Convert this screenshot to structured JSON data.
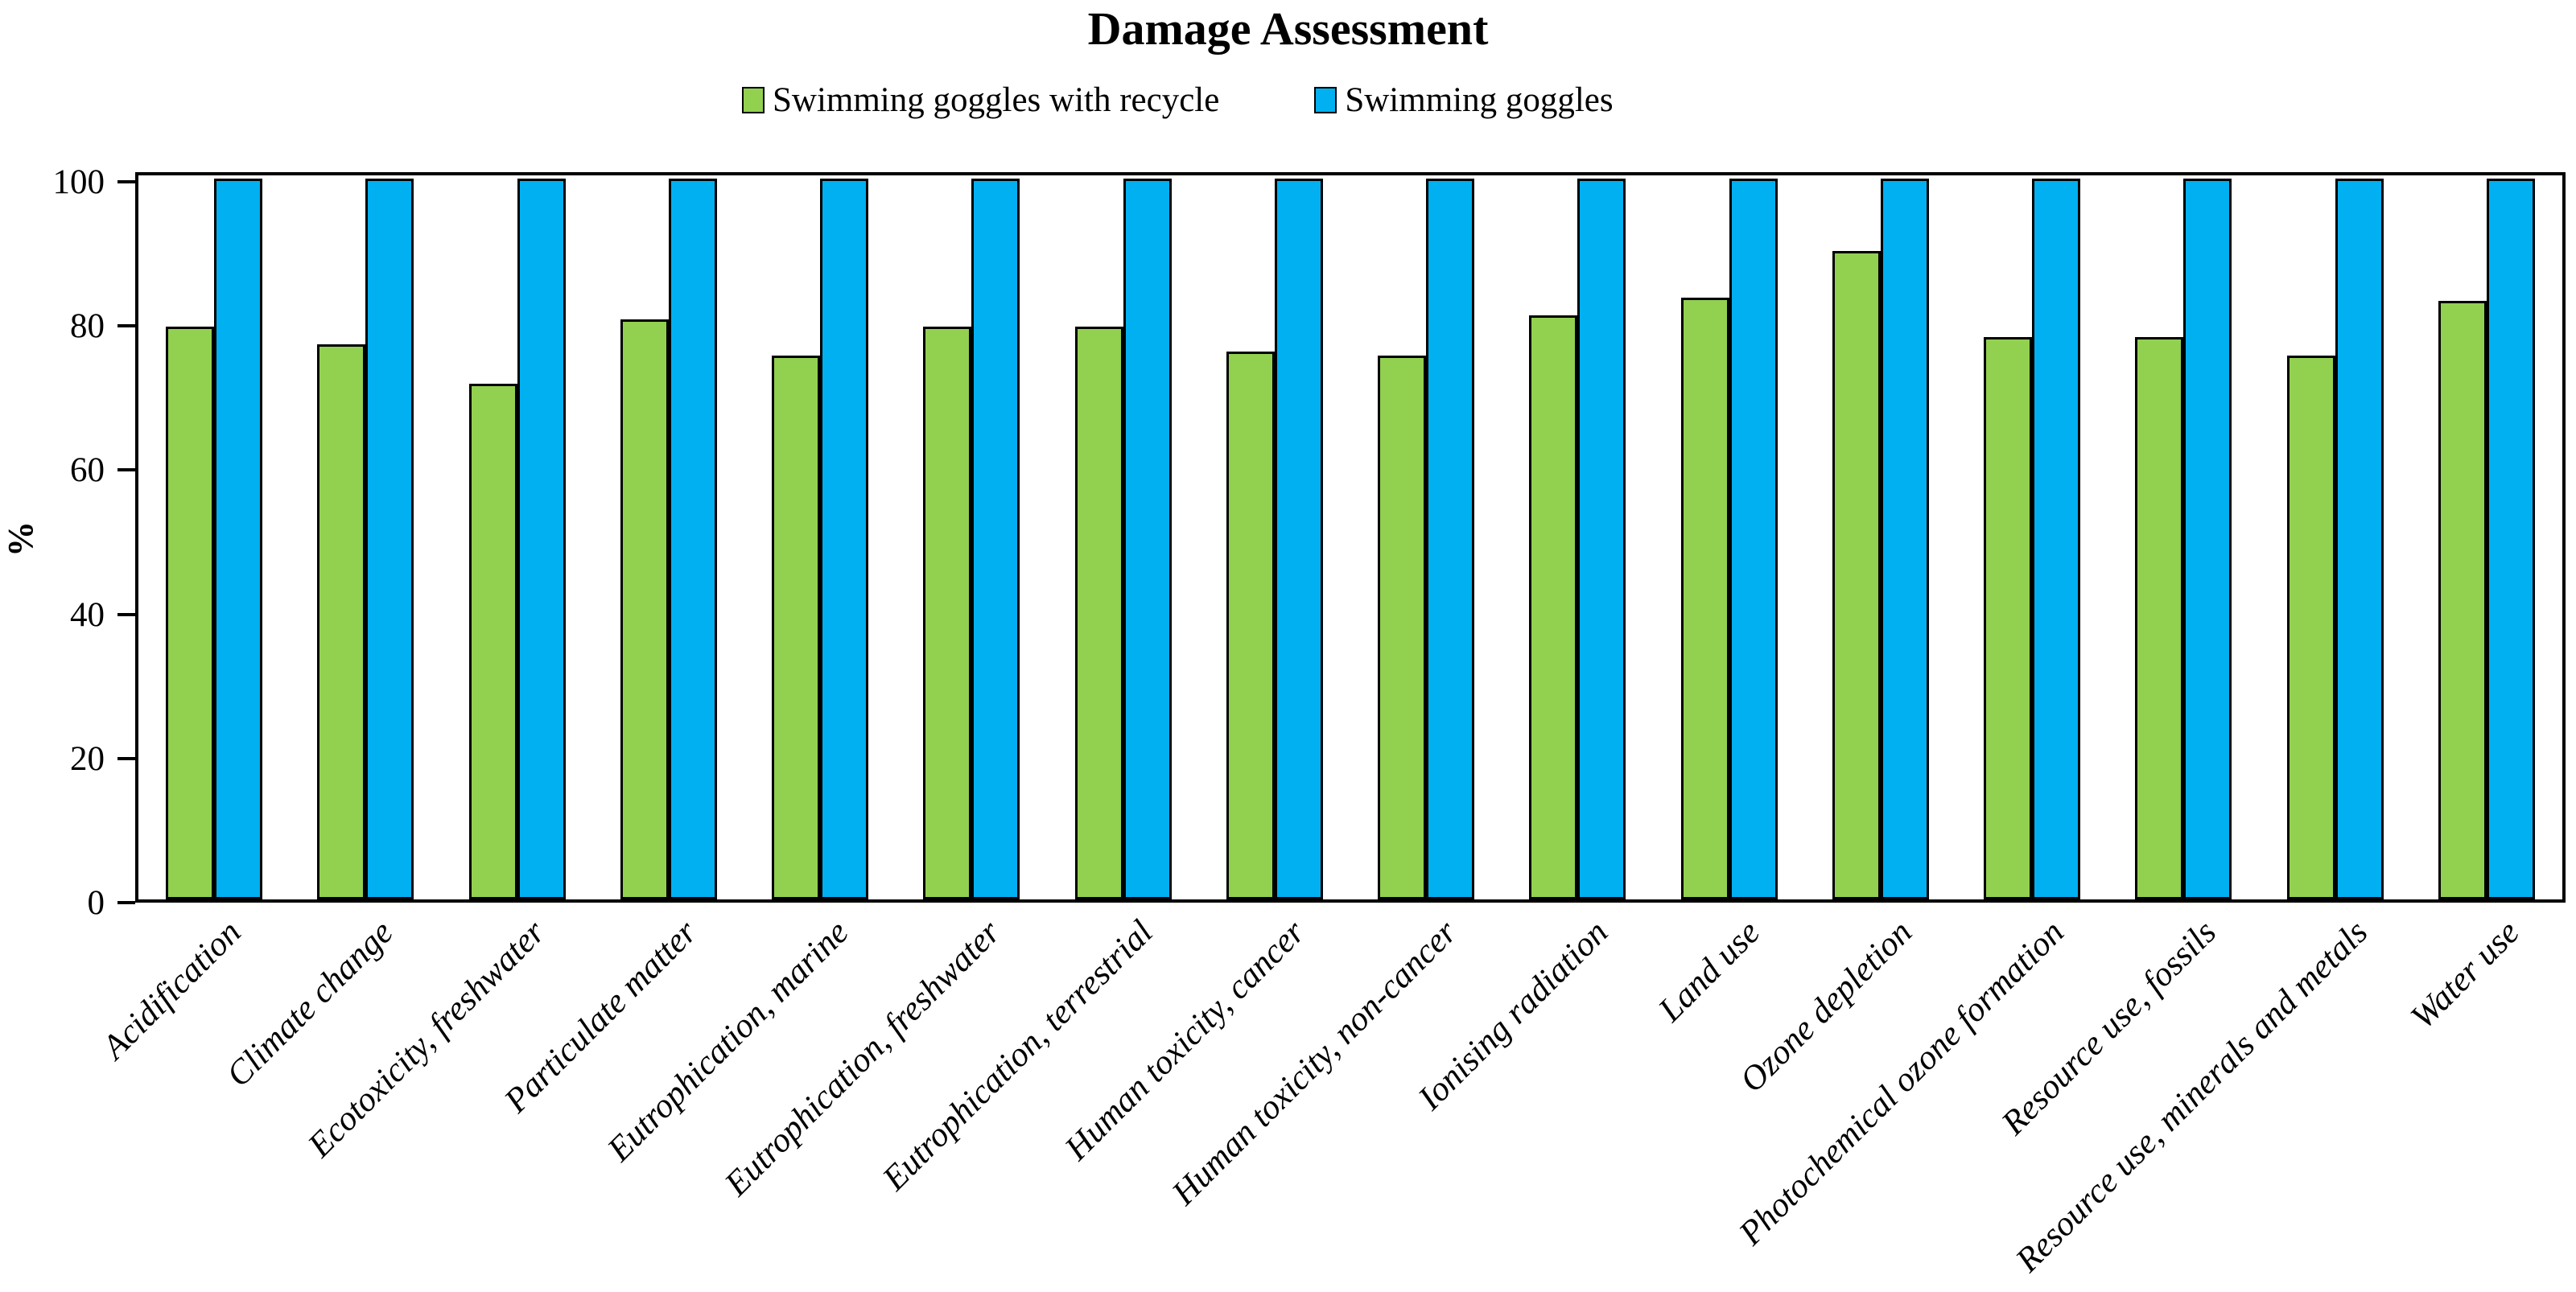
{
  "title": "Damage Assessment",
  "y_axis": {
    "title": "%",
    "ticks": [
      0,
      20,
      40,
      60,
      80,
      100
    ]
  },
  "chart_data": {
    "type": "bar",
    "title": "Damage Assessment",
    "xlabel": "",
    "ylabel": "%",
    "ylim": [
      0,
      100
    ],
    "yticks": [
      0,
      20,
      40,
      60,
      80,
      100
    ],
    "grid": false,
    "legend_position": "top",
    "categories": [
      "Acidification",
      "Climate change",
      "Ecotoxicity, freshwater",
      "Particulate matter",
      "Eutrophication, marine",
      "Eutrophication, freshwater",
      "Eutrophication, terrestrial",
      "Human toxicity, cancer",
      "Human toxicity, non-cancer",
      "Ionising radiation",
      "Land use",
      "Ozone depletion",
      "Photochemical ozone formation",
      "Resource use, fossils",
      "Resource use, minerals and metals",
      "Water use"
    ],
    "series": [
      {
        "name": "Swimming goggles with recycle",
        "color": "#92D050",
        "values": [
          79.5,
          77,
          71.5,
          80.5,
          75.5,
          79.5,
          79.5,
          76,
          75.5,
          81,
          83.5,
          90,
          78,
          78,
          75.5,
          83
        ]
      },
      {
        "name": "Swimming goggles",
        "color": "#00B0F0",
        "values": [
          100,
          100,
          100,
          100,
          100,
          100,
          100,
          100,
          100,
          100,
          100,
          100,
          100,
          100,
          100,
          100
        ]
      }
    ]
  }
}
